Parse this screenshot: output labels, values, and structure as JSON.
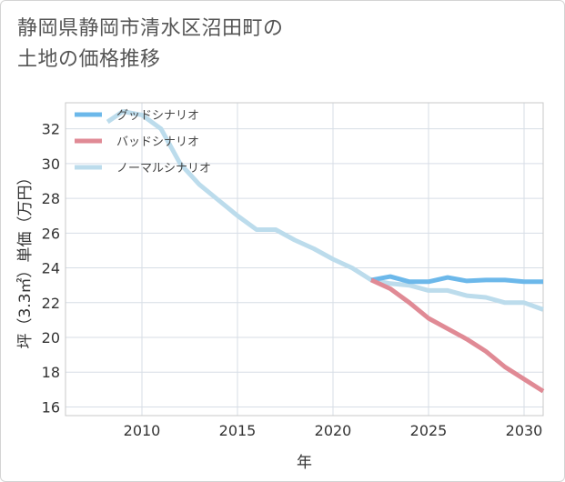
{
  "title_lines": [
    "静岡県静岡市清水区沼田町の",
    "土地の価格推移"
  ],
  "chart_data": {
    "type": "line",
    "title": "静岡県静岡市清水区沼田町の土地の価格推移",
    "xlabel": "年",
    "ylabel": "坪（3.3㎡）単価（万円）",
    "xlim": [
      2006,
      2031
    ],
    "ylim": [
      15.5,
      33.5
    ],
    "xticks": [
      2010,
      2015,
      2020,
      2025,
      2030
    ],
    "yticks": [
      16,
      18,
      20,
      22,
      24,
      26,
      28,
      30,
      32
    ],
    "grid": true,
    "legend_position": "top-left",
    "series": [
      {
        "name": "グッドシナリオ",
        "color": "#6cb8ea",
        "points": [
          [
            2022,
            23.3
          ],
          [
            2023,
            23.5
          ],
          [
            2024,
            23.2
          ],
          [
            2025,
            23.2
          ],
          [
            2026,
            23.45
          ],
          [
            2027,
            23.25
          ],
          [
            2028,
            23.3
          ],
          [
            2029,
            23.3
          ],
          [
            2030,
            23.2
          ],
          [
            2031,
            23.2
          ]
        ]
      },
      {
        "name": "バッドシナリオ",
        "color": "#e08a95",
        "points": [
          [
            2022,
            23.3
          ],
          [
            2023,
            22.8
          ],
          [
            2024,
            22.0
          ],
          [
            2025,
            21.1
          ],
          [
            2026,
            20.5
          ],
          [
            2027,
            19.9
          ],
          [
            2028,
            19.2
          ],
          [
            2029,
            18.3
          ],
          [
            2030,
            17.6
          ],
          [
            2031,
            16.9
          ]
        ]
      },
      {
        "name": "ノーマルシナリオ",
        "color": "#bcdcec",
        "points": [
          [
            2008.2,
            32.4
          ],
          [
            2009,
            33.0
          ],
          [
            2010,
            32.8
          ],
          [
            2011,
            32.0
          ],
          [
            2012,
            30.0
          ],
          [
            2013,
            28.8
          ],
          [
            2014,
            27.9
          ],
          [
            2015,
            27.0
          ],
          [
            2016,
            26.2
          ],
          [
            2017,
            26.2
          ],
          [
            2018,
            25.6
          ],
          [
            2019,
            25.1
          ],
          [
            2020,
            24.5
          ],
          [
            2021,
            24.0
          ],
          [
            2022,
            23.3
          ],
          [
            2023,
            23.1
          ],
          [
            2024,
            23.0
          ],
          [
            2025,
            22.7
          ],
          [
            2026,
            22.7
          ],
          [
            2027,
            22.4
          ],
          [
            2028,
            22.3
          ],
          [
            2029,
            22.0
          ],
          [
            2030,
            22.0
          ],
          [
            2031,
            21.6
          ]
        ]
      }
    ]
  }
}
